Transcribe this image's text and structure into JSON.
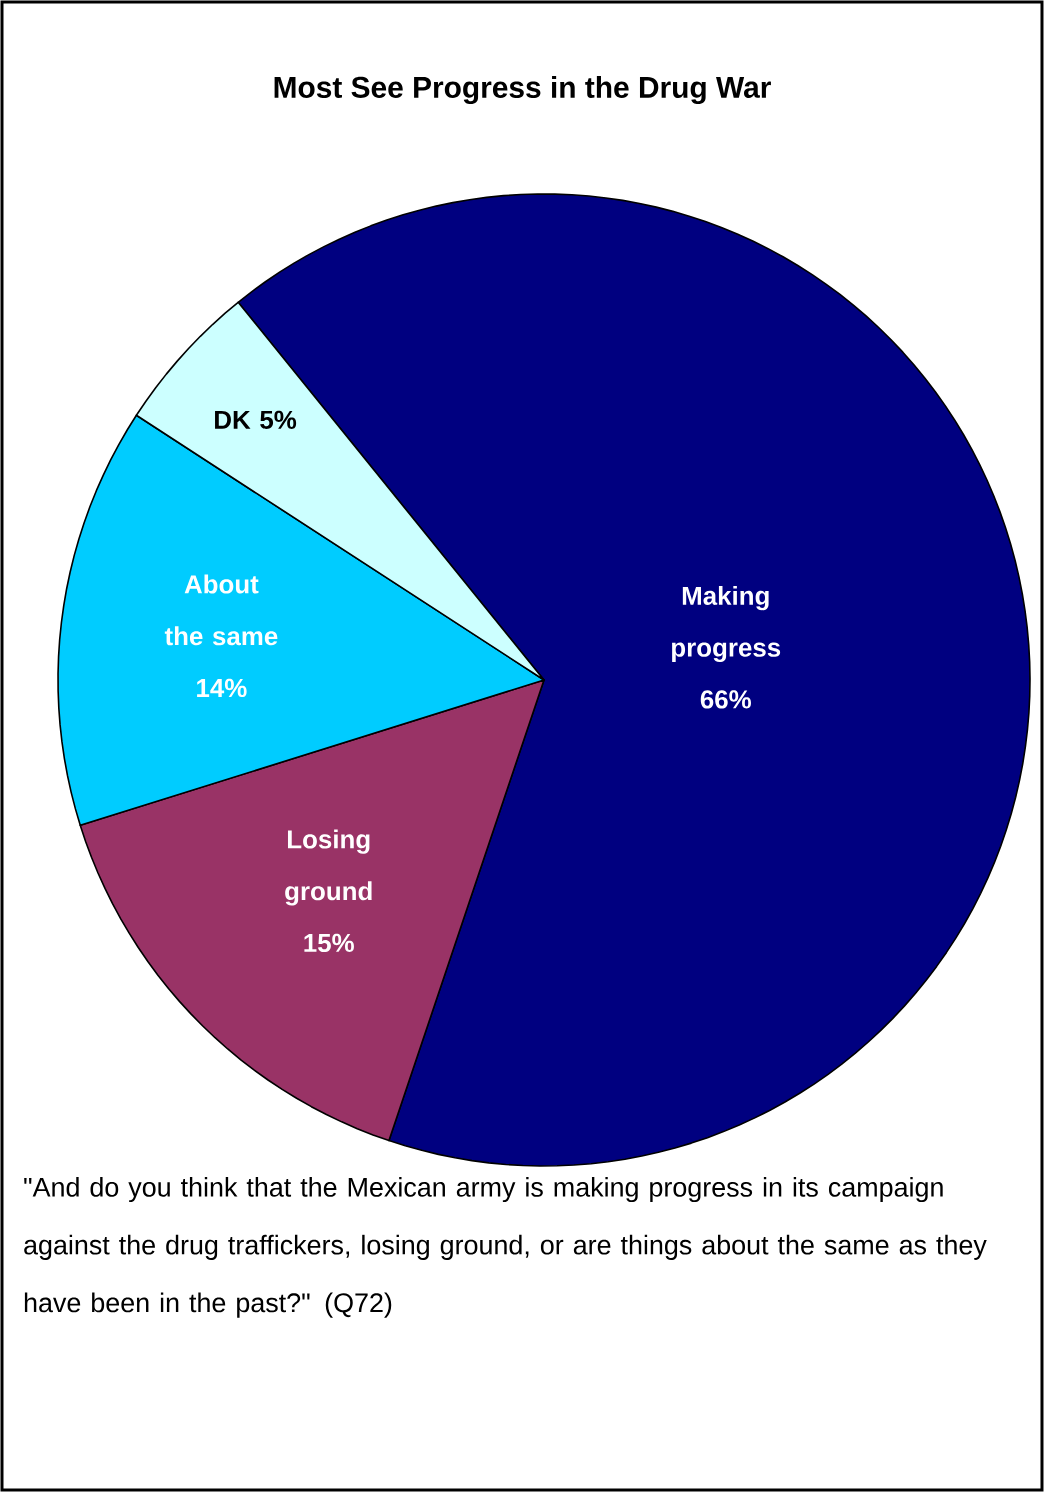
{
  "chart_data": {
    "type": "pie",
    "title": "Most See Progress in the Drug War",
    "categories": [
      "Making progress",
      "Losing ground",
      "About the same",
      "DK"
    ],
    "values": [
      66,
      15,
      14,
      5
    ],
    "colors": [
      "#000080",
      "#993366",
      "#00ccff",
      "#ccffff"
    ],
    "value_labels": [
      "66%",
      "15%",
      "14%",
      "5%"
    ],
    "annotations": [
      "\"And do you think that the Mexican army is making progress in its campaign against the drug traffickers, losing ground, or are things about the same as they have been in the past?\" (Q72)"
    ]
  }
}
